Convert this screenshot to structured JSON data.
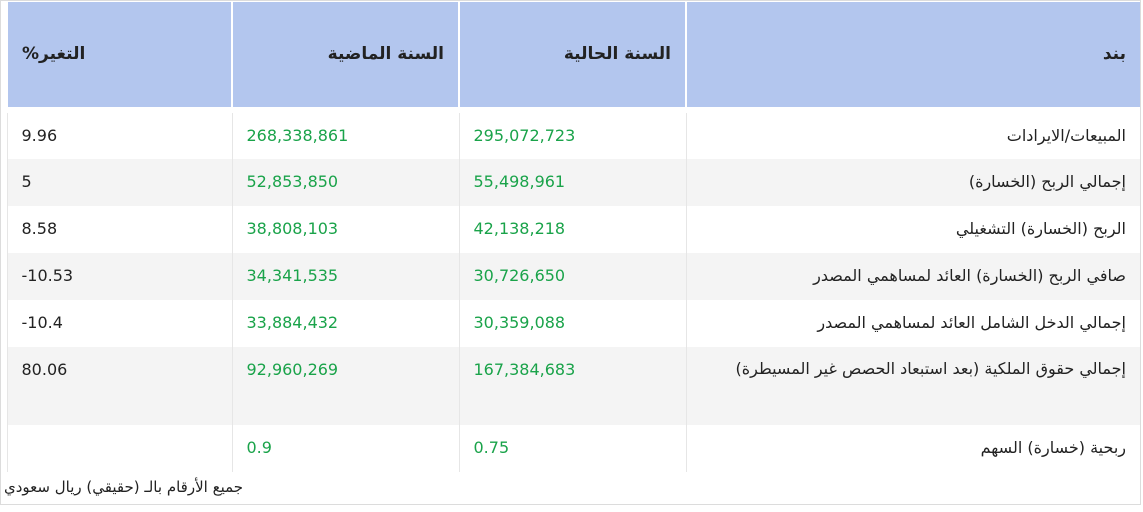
{
  "table": {
    "headers": {
      "item": "بند",
      "current_year": "السنة الحالية",
      "previous_year": "السنة الماضية",
      "change": "التغير%"
    },
    "rows": [
      {
        "item": "المبيعات/الايرادات",
        "current": "295,072,723",
        "previous": "268,338,861",
        "change": "9.96"
      },
      {
        "item": "إجمالي الربح (الخسارة)",
        "current": "55,498,961",
        "previous": "52,853,850",
        "change": "5"
      },
      {
        "item": "الربح (الخسارة) التشغيلي",
        "current": "42,138,218",
        "previous": "38,808,103",
        "change": "8.58"
      },
      {
        "item": "صافي الربح (الخسارة) العائد لمساهمي المصدر",
        "current": "30,726,650",
        "previous": "34,341,535",
        "change": "10.53-"
      },
      {
        "item": "إجمالي الدخل الشامل العائد لمساهمي المصدر",
        "current": "30,359,088",
        "previous": "33,884,432",
        "change": "10.4-"
      },
      {
        "item": "إجمالي حقوق الملكية (بعد استبعاد الحصص غير المسيطرة)",
        "current": "167,384,683",
        "previous": "92,960,269",
        "change": "80.06"
      },
      {
        "item": "ربحية (خسارة) السهم",
        "current": "0.75",
        "previous": "0.9",
        "change": ""
      }
    ]
  },
  "footnote": "جميع الأرقام بالـ (حقيقي) ريال سعودي"
}
